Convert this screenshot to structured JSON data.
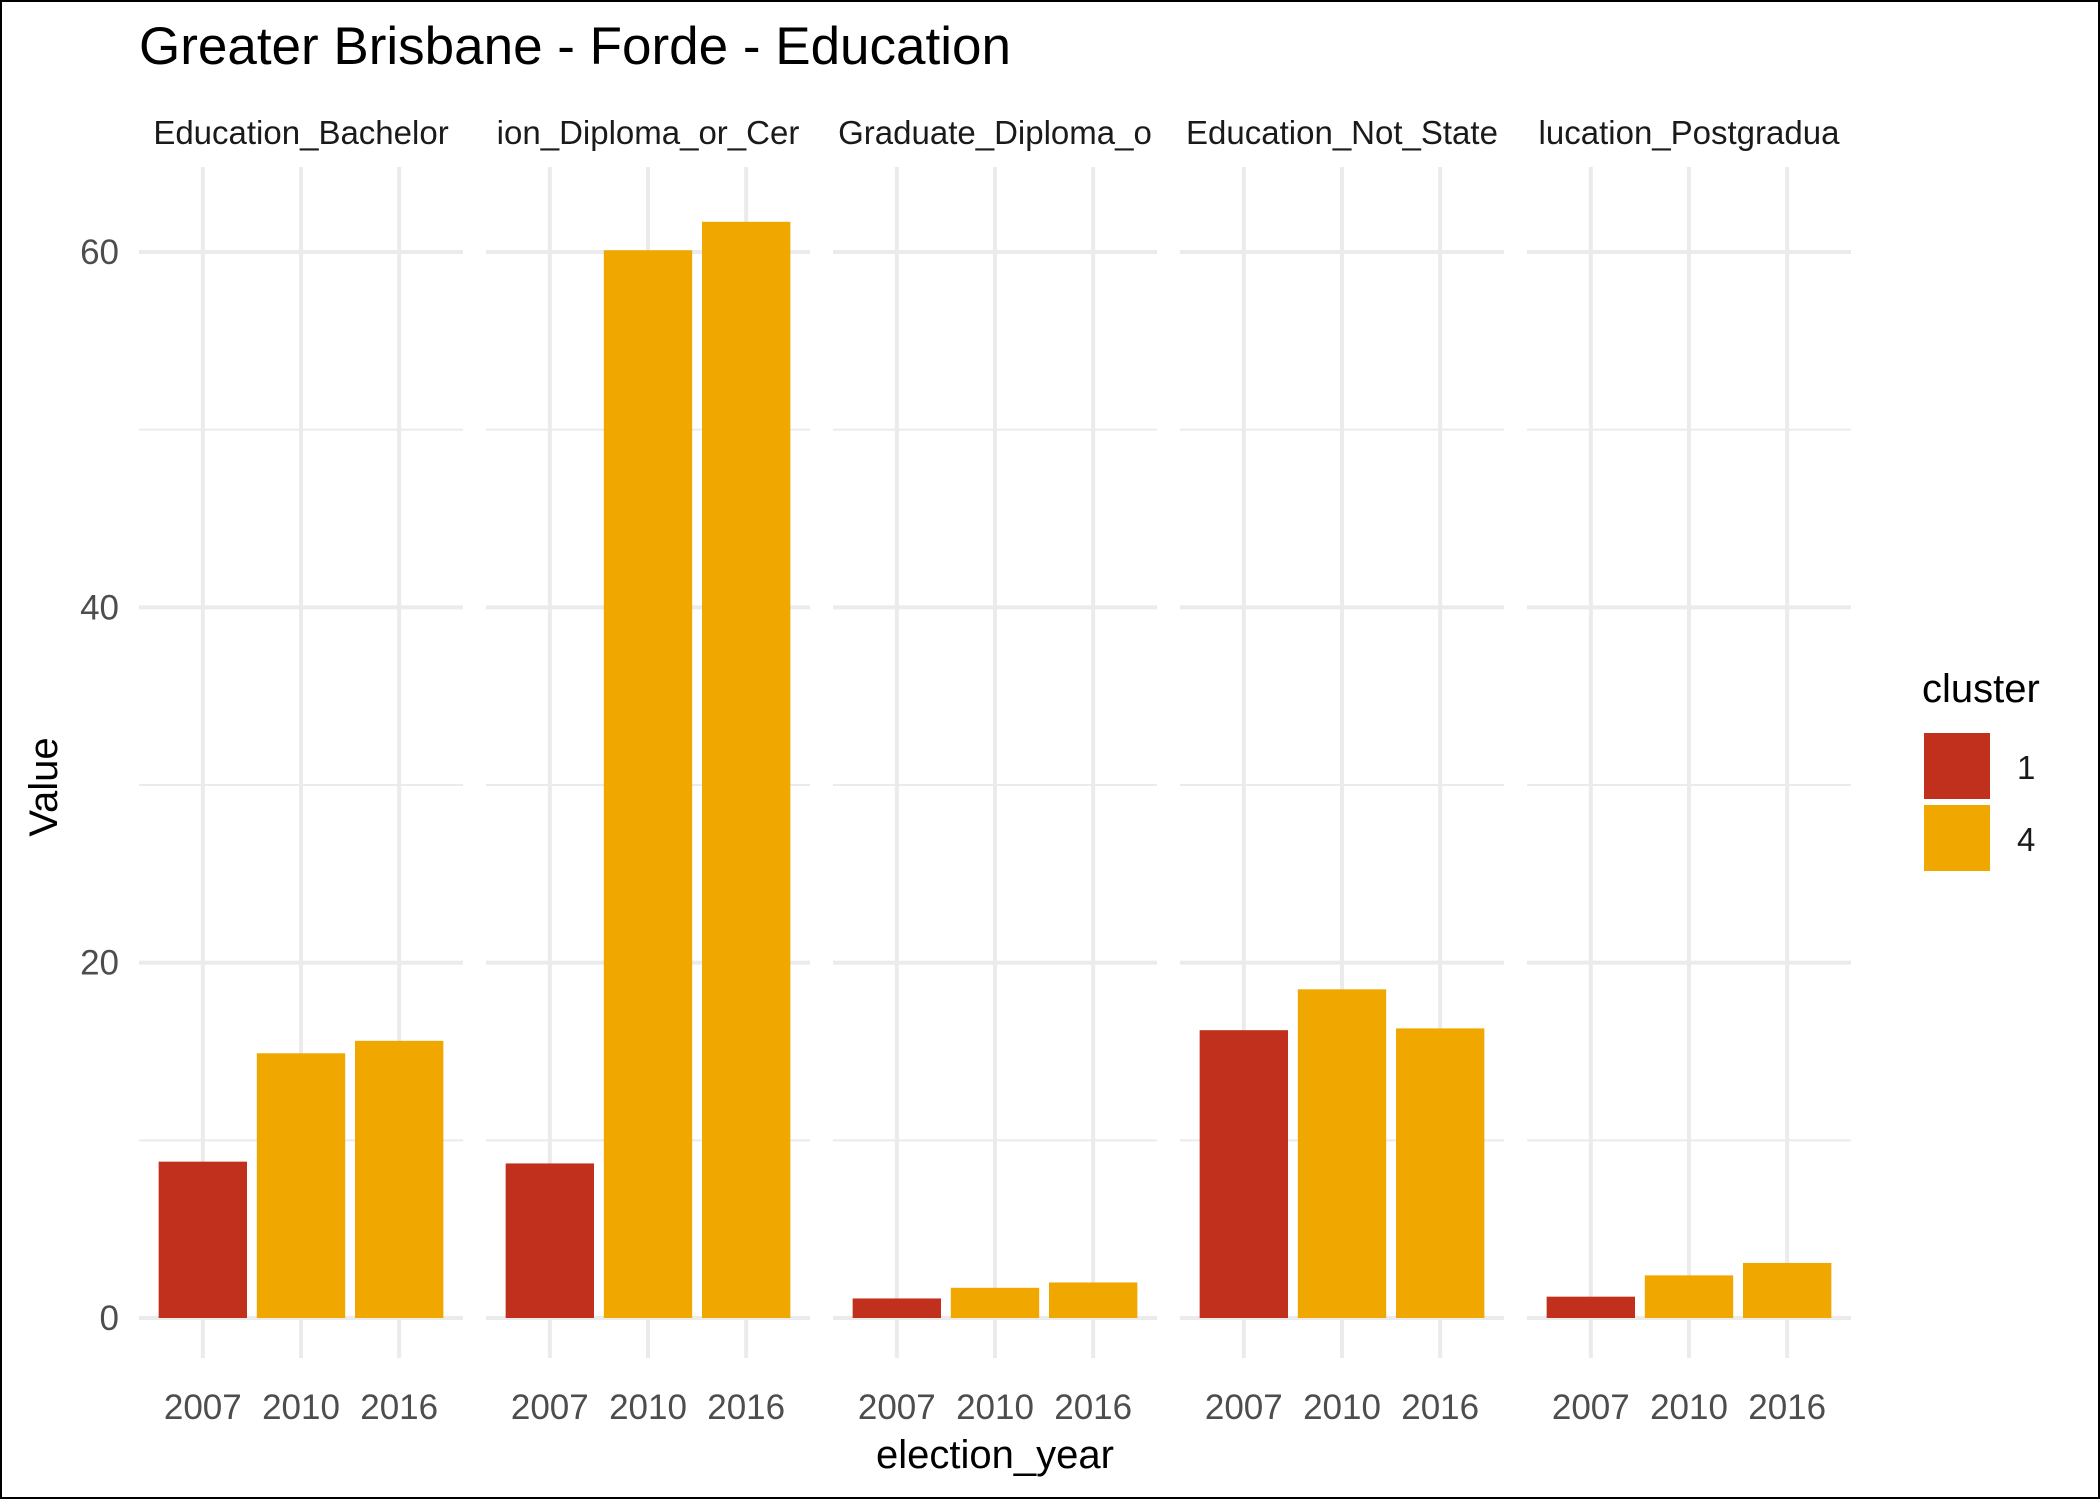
{
  "chart_data": {
    "type": "bar",
    "title": "Greater Brisbane - Forde - Education",
    "xlabel": "election_year",
    "ylabel": "Value",
    "ylim": [
      0,
      65
    ],
    "yticks": [
      0,
      20,
      40,
      60
    ],
    "ytick_labels": [
      "0",
      "20",
      "40",
      "60"
    ],
    "categories": [
      "2007",
      "2010",
      "2016"
    ],
    "grid": true,
    "legend": {
      "title": "cluster",
      "position": "right",
      "entries": [
        {
          "label": "1",
          "color": "#C0301C"
        },
        {
          "label": "4",
          "color": "#F0A800"
        }
      ]
    },
    "panels": [
      {
        "strip_label": "Education_Bachelor",
        "values": [
          8.8,
          14.9,
          15.6
        ],
        "clusters": [
          "1",
          "4",
          "4"
        ]
      },
      {
        "strip_label": "ion_Diploma_or_Cer",
        "values": [
          8.7,
          60.1,
          61.7
        ],
        "clusters": [
          "1",
          "4",
          "4"
        ]
      },
      {
        "strip_label": "Graduate_Diploma_o",
        "values": [
          1.1,
          1.7,
          2.0
        ],
        "clusters": [
          "1",
          "4",
          "4"
        ]
      },
      {
        "strip_label": "Education_Not_State",
        "values": [
          16.2,
          18.5,
          16.3
        ],
        "clusters": [
          "1",
          "4",
          "4"
        ]
      },
      {
        "strip_label": "lucation_Postgradua",
        "values": [
          1.2,
          2.4,
          3.1
        ],
        "clusters": [
          "1",
          "4",
          "4"
        ]
      }
    ]
  }
}
